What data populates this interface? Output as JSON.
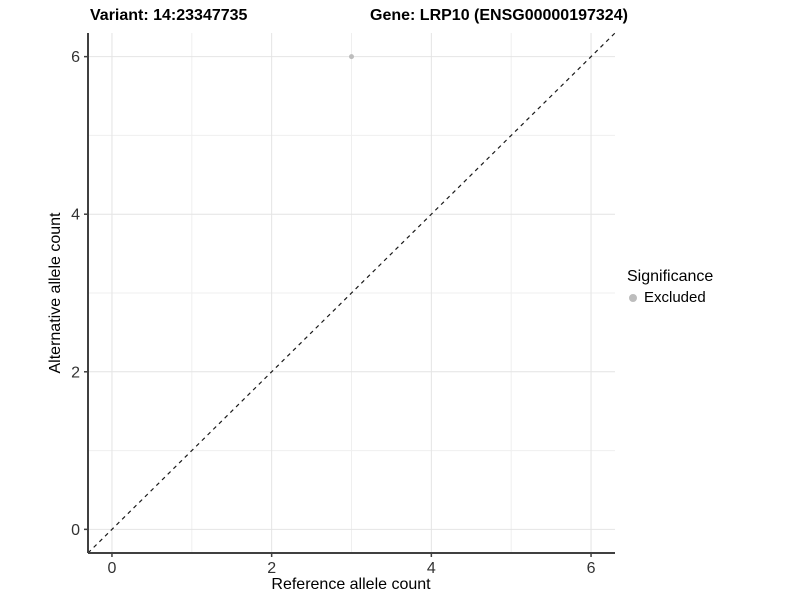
{
  "title": {
    "variant": "Variant: 14:23347735",
    "gene": "Gene: LRP10 (ENSG00000197324)"
  },
  "axes": {
    "x_label": "Reference allele count",
    "y_label": "Alternative allele count"
  },
  "legend": {
    "title": "Significance",
    "items": [
      {
        "label": "Excluded",
        "color": "#bdbdbd"
      }
    ]
  },
  "colors": {
    "background": "#ffffff",
    "grid_major": "#e4e4e4",
    "grid_minor": "#efefef",
    "axis_line": "#404040",
    "tick_text": "#333333",
    "identity_line": "#1a1a1a",
    "point": "#bdbdbd"
  },
  "chart_data": {
    "type": "scatter",
    "title": "Variant: 14:23347735    Gene: LRP10 (ENSG00000197324)",
    "xlabel": "Reference allele count",
    "ylabel": "Alternative allele count",
    "xlim": [
      -0.3,
      6.3
    ],
    "ylim": [
      -0.3,
      6.3
    ],
    "x_major_ticks": [
      0,
      2,
      4,
      6
    ],
    "x_minor_ticks": [
      1,
      3,
      5
    ],
    "y_major_ticks": [
      0,
      2,
      4,
      6
    ],
    "y_minor_ticks": [
      1,
      3,
      5
    ],
    "grid": true,
    "legend_position": "right",
    "identity_line": {
      "style": "dashed",
      "x1": -0.3,
      "y1": -0.3,
      "x2": 6.3,
      "y2": 6.3
    },
    "series": [
      {
        "name": "Excluded",
        "color": "#bdbdbd",
        "points": [
          {
            "x": 3,
            "y": 6
          }
        ]
      }
    ]
  }
}
